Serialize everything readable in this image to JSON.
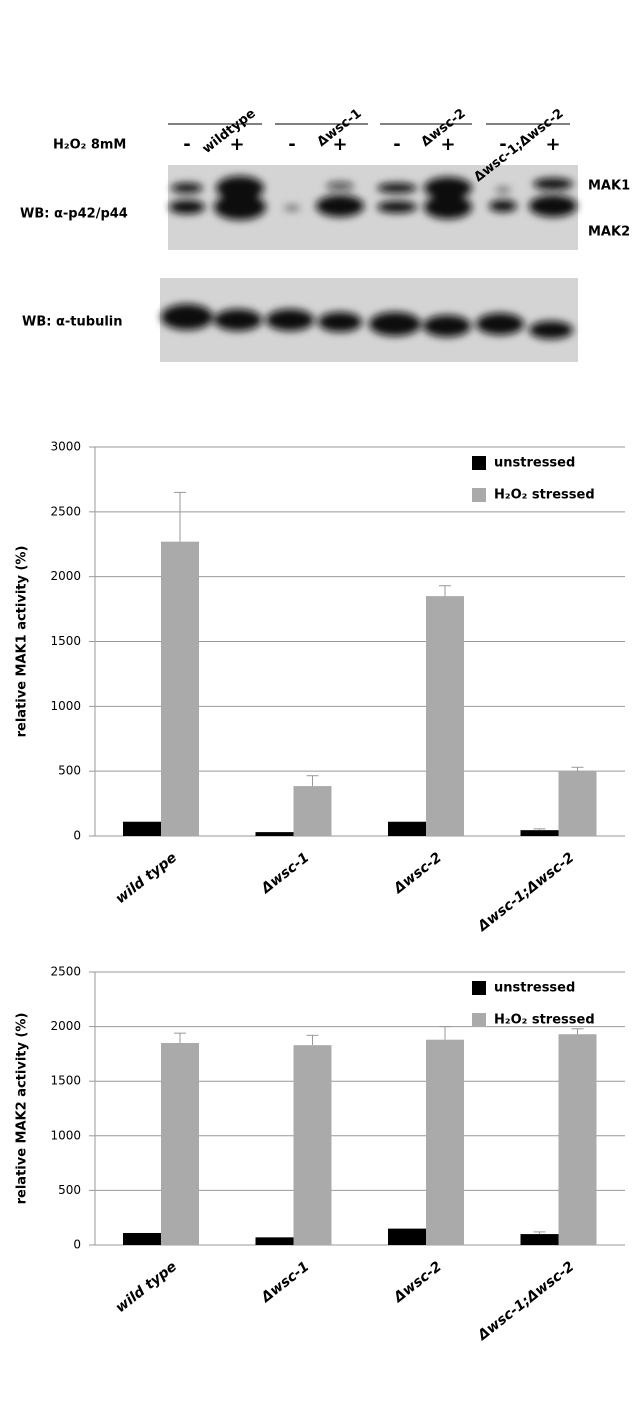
{
  "blot": {
    "lanes": [
      "wildtype",
      "Δwsc-1",
      "Δwsc-2",
      "Δwsc-1;Δwsc-2"
    ],
    "treatment_label": "H₂O₂ 8mM",
    "treatments": [
      "-",
      "+",
      "-",
      "+",
      "-",
      "+",
      "-",
      "+"
    ],
    "blot1_label": "WB: α-p42/p44",
    "blot2_label": "WB: α-tubulin",
    "band_labels": [
      "MAK1",
      "MAK2"
    ]
  },
  "chart_data": [
    {
      "type": "bar",
      "y_label": "relative MAK1 activity (%)",
      "categories": [
        "wild type",
        "Δwsc-1",
        "Δwsc-2",
        "Δwsc-1;Δwsc-2"
      ],
      "series": [
        {
          "name": "unstressed",
          "color": "#000000",
          "values": [
            110,
            30,
            110,
            45
          ],
          "errors": [
            0,
            0,
            0,
            10
          ]
        },
        {
          "name": "H₂O₂ stressed",
          "color": "#aaaaaa",
          "values": [
            2270,
            385,
            1850,
            500
          ],
          "errors": [
            380,
            80,
            80,
            30
          ]
        }
      ],
      "ylim": [
        0,
        3000
      ],
      "yticks": [
        0,
        500,
        1000,
        1500,
        2000,
        2500,
        3000
      ],
      "grid": true,
      "legend": "top-right"
    },
    {
      "type": "bar",
      "y_label": "relative MAK2 activity (%)",
      "categories": [
        "wild type",
        "Δwsc-1",
        "Δwsc-2",
        "Δwsc-1;Δwsc-2"
      ],
      "series": [
        {
          "name": "unstressed",
          "color": "#000000",
          "values": [
            110,
            70,
            150,
            100
          ],
          "errors": [
            0,
            0,
            0,
            20
          ]
        },
        {
          "name": "H₂O₂ stressed",
          "color": "#aaaaaa",
          "values": [
            1850,
            1830,
            1880,
            1930
          ],
          "errors": [
            90,
            90,
            120,
            50
          ]
        }
      ],
      "ylim": [
        0,
        2500
      ],
      "yticks": [
        0,
        500,
        1000,
        1500,
        2000,
        2500
      ],
      "grid": true,
      "legend": "top-right"
    }
  ]
}
